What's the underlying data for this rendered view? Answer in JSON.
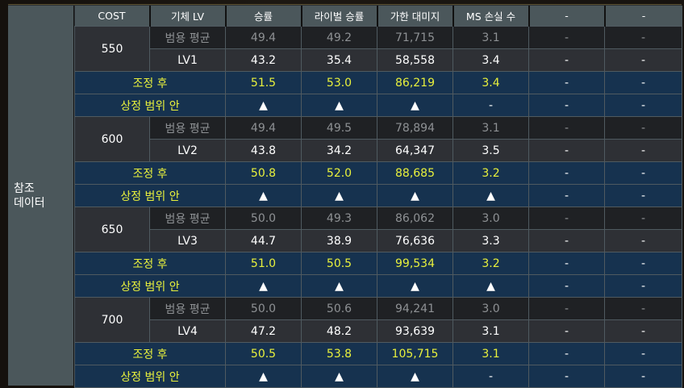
{
  "side_label": "참조\n데이터",
  "side_label_lines": [
    "참조",
    "데이터"
  ],
  "headers": [
    "COST",
    "기체 LV",
    "승률",
    "라이벌 승률",
    "가한 대미지",
    "MS 손실 수",
    "-",
    "-"
  ],
  "row_labels": {
    "average": "범용 평균",
    "adjusted": "조정 후",
    "in_range": "상정 범위 안"
  },
  "groups": [
    {
      "cost": "550",
      "level": "LV1",
      "average": [
        "49.4",
        "49.2",
        "71,715",
        "3.1",
        "-",
        "-"
      ],
      "lv": [
        "43.2",
        "35.4",
        "58,558",
        "3.4",
        "-",
        "-"
      ],
      "adjusted": [
        "51.5",
        "53.0",
        "86,219",
        "3.4",
        "-",
        "-"
      ],
      "in_range": [
        "▲",
        "▲",
        "▲",
        "-",
        "-",
        "-"
      ]
    },
    {
      "cost": "600",
      "level": "LV2",
      "average": [
        "49.4",
        "49.5",
        "78,894",
        "3.1",
        "-",
        "-"
      ],
      "lv": [
        "43.8",
        "34.2",
        "64,347",
        "3.5",
        "-",
        "-"
      ],
      "adjusted": [
        "50.8",
        "52.0",
        "88,685",
        "3.2",
        "-",
        "-"
      ],
      "in_range": [
        "▲",
        "▲",
        "▲",
        "▲",
        "-",
        "-"
      ]
    },
    {
      "cost": "650",
      "level": "LV3",
      "average": [
        "50.0",
        "49.3",
        "86,062",
        "3.0",
        "-",
        "-"
      ],
      "lv": [
        "44.7",
        "38.9",
        "76,636",
        "3.3",
        "-",
        "-"
      ],
      "adjusted": [
        "51.0",
        "50.5",
        "99,534",
        "3.2",
        "-",
        "-"
      ],
      "in_range": [
        "▲",
        "▲",
        "▲",
        "▲",
        "-",
        "-"
      ]
    },
    {
      "cost": "700",
      "level": "LV4",
      "average": [
        "50.0",
        "50.6",
        "94,241",
        "3.0",
        "-",
        "-"
      ],
      "lv": [
        "47.2",
        "48.2",
        "93,639",
        "3.1",
        "-",
        "-"
      ],
      "adjusted": [
        "50.5",
        "53.8",
        "105,715",
        "3.1",
        "-",
        "-"
      ],
      "in_range": [
        "▲",
        "▲",
        "▲",
        "-",
        "-",
        "-"
      ]
    }
  ],
  "colors": {
    "header_bg": "#4b575b",
    "average_bg": "#1f2124",
    "average_text": "#8e9194",
    "level_bg": "#2e3035",
    "adjusted_bg": "#16324f",
    "adjusted_text": "#e8f03c",
    "triangle": "#22e6f0"
  }
}
